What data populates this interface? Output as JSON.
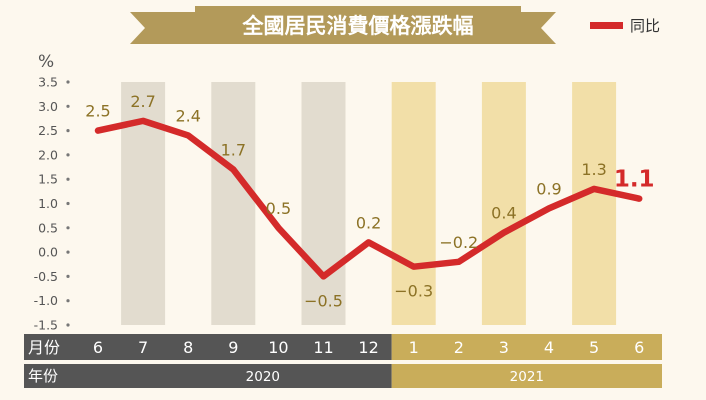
{
  "chart_data": {
    "type": "line",
    "title": "全國居民消費價格漲跌幅",
    "legend": {
      "label": "同比",
      "color": "#d42a2a",
      "position": "top-right"
    },
    "y_unit": "%",
    "ylim": [
      -1.5,
      3.5
    ],
    "y_ticks": [
      "3.5",
      "3.0",
      "2.5",
      "2.0",
      "1.5",
      "1.0",
      "0.5",
      "0.0",
      "-0.5",
      "-1.0",
      "-1.5"
    ],
    "month_row_label": "月份",
    "year_row_label": "年份",
    "categories": [
      "6",
      "7",
      "8",
      "9",
      "10",
      "11",
      "12",
      "1",
      "2",
      "3",
      "4",
      "5",
      "6"
    ],
    "years": [
      {
        "label": "2020",
        "count": 7,
        "color": "#555555"
      },
      {
        "label": "2021",
        "count": 6,
        "color": "#c9ad5a"
      }
    ],
    "series": [
      {
        "name": "同比",
        "color": "#d42a2a",
        "values": [
          2.5,
          2.7,
          2.4,
          1.7,
          0.5,
          -0.5,
          0.2,
          -0.3,
          -0.2,
          0.4,
          0.9,
          1.3,
          1.1
        ],
        "labels": [
          "2.5",
          "2.7",
          "2.4",
          "1.7",
          "0.5",
          "−0.5",
          "0.2",
          "−0.3",
          "−0.2",
          "0.4",
          "0.9",
          "1.3",
          "1.1"
        ]
      }
    ],
    "colors": {
      "band_2020": "#e2dccf",
      "band_2021": "#f2dfa8",
      "label_text": "#8c7226",
      "last_label": "#d42a2a",
      "title_banner": "#b39a5a"
    }
  }
}
